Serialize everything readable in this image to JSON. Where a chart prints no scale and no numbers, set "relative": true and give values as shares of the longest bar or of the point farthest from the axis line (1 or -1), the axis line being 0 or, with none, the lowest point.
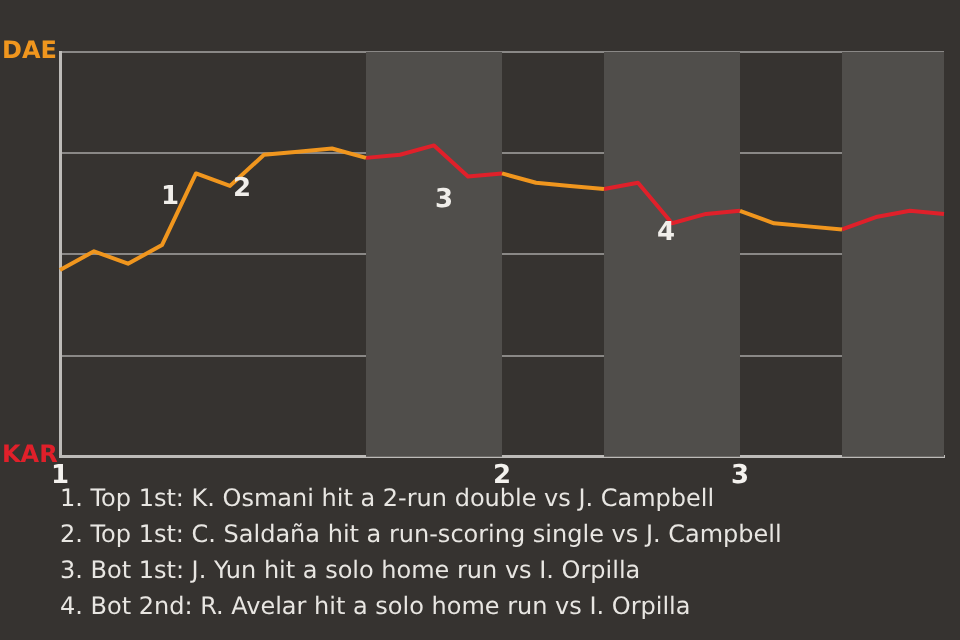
{
  "chart_data": {
    "type": "line",
    "relative": true,
    "categories": [
      "1",
      null,
      null,
      null,
      null,
      null,
      null,
      null,
      null,
      null,
      null,
      null,
      null,
      "2",
      null,
      null,
      null,
      null,
      null,
      null,
      "3",
      null,
      null,
      null,
      null,
      null,
      null
    ],
    "grid": "y",
    "legend": false,
    "line_style": "solid",
    "series": [
      {
        "color": "#f0961e",
        "values": [
          0.6,
          0.66,
          0.62,
          0.68,
          0.91,
          0.87,
          0.97,
          0.98,
          0.99,
          0.96,
          null,
          null,
          null,
          0.91,
          0.88,
          0.87,
          0.86,
          null,
          null,
          null,
          0.79,
          0.75,
          0.74,
          0.73,
          null,
          null,
          null
        ]
      },
      {
        "color": "#e0202a",
        "values": [
          null,
          null,
          null,
          null,
          null,
          null,
          null,
          null,
          null,
          0.96,
          0.97,
          1,
          0.9,
          0.91,
          null,
          null,
          0.86,
          0.88,
          0.75,
          0.78,
          0.79,
          null,
          null,
          0.73,
          0.77,
          0.79,
          0.78
        ]
      }
    ],
    "annotations": [
      "1",
      "2",
      "3",
      "4",
      "DAE",
      "KAR",
      "1. Top 1st: K. Osmani hit a 2-run double vs J. Campbell",
      "2. Top 1st: C. Saldaña hit a run-scoring single vs J. Campbell",
      "3. Bot 1st: J. Yun hit a solo home run vs I. Orpilla",
      "4. Bot 2nd: R. Avelar hit a solo home run vs I. Orpilla"
    ]
  }
}
